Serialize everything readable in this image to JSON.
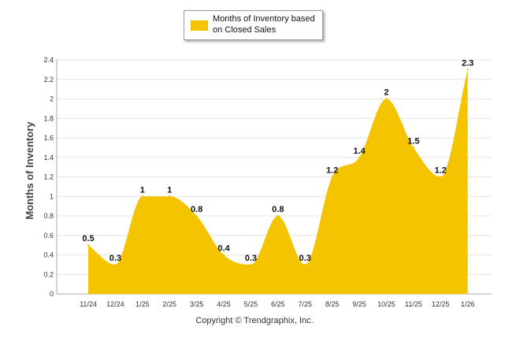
{
  "chart_data": {
    "type": "area",
    "categories": [
      "11/24",
      "12/24",
      "1/25",
      "2/25",
      "3/25",
      "4/25",
      "5/25",
      "6/25",
      "7/25",
      "8/25",
      "9/25",
      "10/25",
      "11/25",
      "12/25",
      "1/26"
    ],
    "series": [
      {
        "name": "Months of Inventory based on Closed Sales",
        "values": [
          0.5,
          0.3,
          1,
          1,
          0.8,
          0.4,
          0.3,
          0.8,
          0.3,
          1.2,
          1.4,
          2,
          1.5,
          1.2,
          2.3
        ],
        "labels": [
          "0.5",
          "0.3",
          "1",
          "1",
          "0.8",
          "0.4",
          "0.3",
          "0.8",
          "0.3",
          "1.2",
          "1.4",
          "2",
          "1.5",
          "1.2",
          "2.3"
        ],
        "color": "#f5c400"
      }
    ],
    "yticks": [
      "0",
      "0.2",
      "0.4",
      "0.6",
      "0.8",
      "1",
      "1.2",
      "1.4",
      "1.6",
      "1.8",
      "2",
      "2.2",
      "2.4"
    ],
    "ylim": [
      0,
      2.4
    ],
    "title": "",
    "xlabel": "",
    "ylabel": "Months of Inventory",
    "legend_text": "Months of Inventory based on Closed Sales",
    "legend_position": "top-center",
    "grid": true
  },
  "copyright": "Copyright © Trendgraphix, Inc."
}
